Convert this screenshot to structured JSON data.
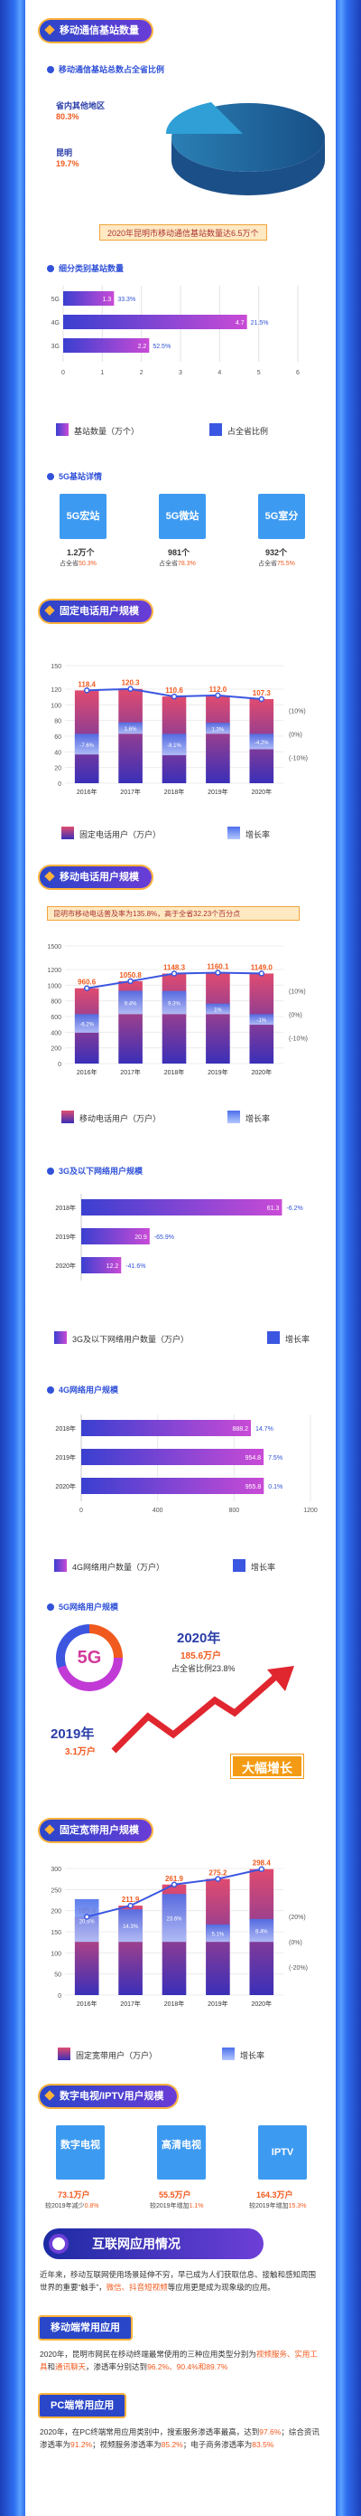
{
  "s1": {
    "title": "移动通信基站数量",
    "sub": "移动通信基站总数占全省比例",
    "pie_labels": [
      {
        "name": "省内其他地区",
        "value": "80.3%"
      },
      {
        "name": "昆明",
        "value": "19.7%"
      }
    ],
    "banner": "2020年昆明市移动通信基站数量达6.5万个"
  },
  "s2": {
    "sub": "细分类别基站数量",
    "legend_a": "基站数量（万个）",
    "legend_b": "占全省比例"
  },
  "s3": {
    "sub": "5G基站详情",
    "cards": [
      {
        "name": "5G宏站",
        "num": "1.2万个",
        "pct_label": "占全省",
        "pct": "50.3%"
      },
      {
        "name": "5G微站",
        "num": "981个",
        "pct_label": "占全省",
        "pct": "78.3%"
      },
      {
        "name": "5G室分",
        "num": "932个",
        "pct_label": "占全省",
        "pct": "75.5%"
      }
    ]
  },
  "s4": {
    "title": "固定电话用户规模",
    "legend_a": "固定电话用户（万户）",
    "legend_b": "增长率"
  },
  "s5": {
    "title": "移动电话用户规模",
    "note": "昆明市移动电话普及率为135.8%，高于全省32.23个百分点",
    "legend_a": "移动电话用户（万户）",
    "legend_b": "增长率"
  },
  "s6": {
    "sub": "3G及以下网络用户规模",
    "legend_a": "3G及以下网络用户数量（万户）",
    "legend_b": "增长率"
  },
  "s7": {
    "sub": "4G网络用户规模",
    "legend_a": "4G网络用户数量（万户）",
    "legend_b": "增长率"
  },
  "s8": {
    "sub": "5G网络用户规模",
    "badge": "5G",
    "y2020": "2020年",
    "v2020": "185.6万户",
    "p2020": "占全省比例23.8%",
    "y2019": "2019年",
    "v2019": "3.1万户",
    "growth": "大幅增长"
  },
  "s9": {
    "title": "固定宽带用户规模",
    "legend_a": "固定宽带用户（万户）",
    "legend_b": "增长率"
  },
  "s10": {
    "title": "数字电视/IPTV用户规模",
    "cards": [
      {
        "name": "数字电视",
        "num": "73.1万户",
        "desc": "较2019年减少",
        "pct": "0.8%"
      },
      {
        "name": "高清电视",
        "num": "55.5万户",
        "desc": "较2019年增加",
        "pct": "1.1%"
      },
      {
        "name": "IPTV",
        "num": "164.3万户",
        "desc": "较2019年增加",
        "pct": "15.3%"
      }
    ]
  },
  "s11": {
    "title": "互联网应用情况",
    "p1_a": "近年来，移动互联网使用场景延伸不穷，早已成为人们获取信息、接触和感知周围世界的重要“触手”，",
    "p1_hl": "微信、抖音短视频",
    "p1_b": "等应用更是成为现象级的应用。",
    "mobile_tag": "移动端常用应用",
    "p2_a": "2020年，昆明市网民在移动终端最常使用的三种应用类型分别为",
    "p2_hl1": "视频服务、实用工具",
    "p2_b": "和",
    "p2_hl2": "通讯聊天",
    "p2_c": "，渗透率分别达到",
    "p2_hl3": "96.2%、90.4%和89.7%",
    "pc_tag": "PC端常用应用",
    "p3_a": "2020年，在PC终端常用应用类别中，搜索服务渗透率最高，达到",
    "p3_hl1": "97.6%",
    "p3_b": "；综合资讯渗透率为",
    "p3_hl2": "91.2%",
    "p3_c": "；视频服务渗透率为",
    "p3_hl3": "85.2%",
    "p3_d": "；电子商务渗透率为",
    "p3_hl4": "83.5%"
  },
  "chart_data": [
    {
      "type": "pie",
      "categories": [
        "省内其他地区",
        "昆明"
      ],
      "values": [
        80.3,
        19.7
      ]
    },
    {
      "type": "bar",
      "categories": [
        "5G",
        "4G",
        "3G"
      ],
      "series": [
        {
          "name": "基站数量（万个）",
          "values": [
            1.3,
            4.7,
            2.2
          ],
          "labels": [
            "1.3",
            "4.7",
            "2.2"
          ]
        },
        {
          "name": "占全省比例",
          "values": [
            33.3,
            21.5,
            52.5
          ],
          "labels": [
            "33.3%",
            "21.5%",
            "52.5%"
          ]
        }
      ],
      "xlim": [
        0,
        6
      ],
      "xticks": [
        "0",
        "1",
        "2",
        "3",
        "4",
        "5",
        "6"
      ]
    },
    {
      "type": "bar",
      "categories": [
        "2016年",
        "2017年",
        "2018年",
        "2019年",
        "2020年"
      ],
      "series": [
        {
          "name": "固定电话用户（万户）",
          "values": [
            118.4,
            120.3,
            110.6,
            112.0,
            107.3
          ],
          "labels": [
            "118.4",
            "120.3",
            "110.6",
            "112.0",
            "107.3"
          ]
        },
        {
          "name": "增长率",
          "values": [
            -7.6,
            1.6,
            -8.1,
            1.3,
            -4.2
          ],
          "labels": [
            "-7.6%",
            "1.6%",
            "-8.1%",
            "1.3%",
            "-4.2%"
          ]
        }
      ],
      "ylim": [
        0,
        150
      ],
      "yticks": [
        "0",
        "20",
        "40",
        "60",
        "80",
        "100",
        "120",
        "150"
      ],
      "y2ticks": [
        "(10%)",
        "(0%)",
        "(-10%)"
      ]
    },
    {
      "type": "bar",
      "categories": [
        "2016年",
        "2017年",
        "2018年",
        "2019年",
        "2020年"
      ],
      "series": [
        {
          "name": "移动电话用户（万户）",
          "values": [
            960.6,
            1050.8,
            1148.3,
            1160.1,
            1149.0
          ],
          "labels": [
            "960.6",
            "1050.8",
            "1148.3",
            "1160.1",
            "1149.0"
          ]
        },
        {
          "name": "增长率",
          "values": [
            -6.2,
            9.4,
            9.3,
            1.0,
            -1.0
          ],
          "labels": [
            "-6.2%",
            "9.4%",
            "9.3%",
            "1%",
            "-1%"
          ]
        }
      ],
      "ylim": [
        0,
        1500
      ],
      "yticks": [
        "0",
        "200",
        "400",
        "600",
        "800",
        "1000",
        "1200",
        "1500"
      ],
      "y2ticks": [
        "(10%)",
        "(0%)",
        "(-10%)"
      ]
    },
    {
      "type": "bar",
      "categories": [
        "2018年",
        "2019年",
        "2020年"
      ],
      "series": [
        {
          "name": "3G及以下网络用户数量（万户）",
          "values": [
            61.3,
            20.9,
            12.2
          ],
          "labels": [
            "61.3",
            "20.9",
            "12.2"
          ]
        },
        {
          "name": "增长率",
          "values": [
            -6.2,
            -65.9,
            -41.6
          ],
          "labels": [
            "-6.2%",
            "-65.9%",
            "-41.6%"
          ]
        }
      ],
      "xlim": [
        0,
        70
      ]
    },
    {
      "type": "bar",
      "categories": [
        "2018年",
        "2019年",
        "2020年"
      ],
      "series": [
        {
          "name": "4G网络用户数量（万户）",
          "values": [
            888.2,
            954.8,
            955.8
          ],
          "labels": [
            "888.2",
            "954.8",
            "955.8"
          ]
        },
        {
          "name": "增长率",
          "values": [
            14.7,
            7.5,
            0.1
          ],
          "labels": [
            "14.7%",
            "7.5%",
            "0.1%"
          ]
        }
      ],
      "xlim": [
        0,
        1200
      ],
      "xticks": [
        "0",
        "400",
        "800",
        "1200"
      ]
    },
    {
      "type": "line",
      "categories": [
        "2019年",
        "2020年"
      ],
      "values": [
        3.1,
        185.6
      ]
    },
    {
      "type": "bar",
      "categories": [
        "2016年",
        "2017年",
        "2018年",
        "2019年",
        "2020年"
      ],
      "series": [
        {
          "name": "固定宽带用户（万户）",
          "values": [
            185.4,
            211.9,
            261.9,
            275.2,
            298.4
          ],
          "labels": [
            "185.4",
            "211.9",
            "261.9",
            "275.2",
            "298.4"
          ]
        },
        {
          "name": "增长率",
          "values": [
            20.5,
            14.3,
            23.6,
            5.1,
            8.4
          ],
          "labels": [
            "20.5%",
            "14.3%",
            "23.6%",
            "5.1%",
            "8.4%"
          ]
        }
      ],
      "ylim": [
        0,
        300
      ],
      "yticks": [
        "0",
        "50",
        "100",
        "150",
        "200",
        "250",
        "300"
      ],
      "y2ticks": [
        "(20%)",
        "(0%)",
        "(-20%)"
      ]
    }
  ]
}
